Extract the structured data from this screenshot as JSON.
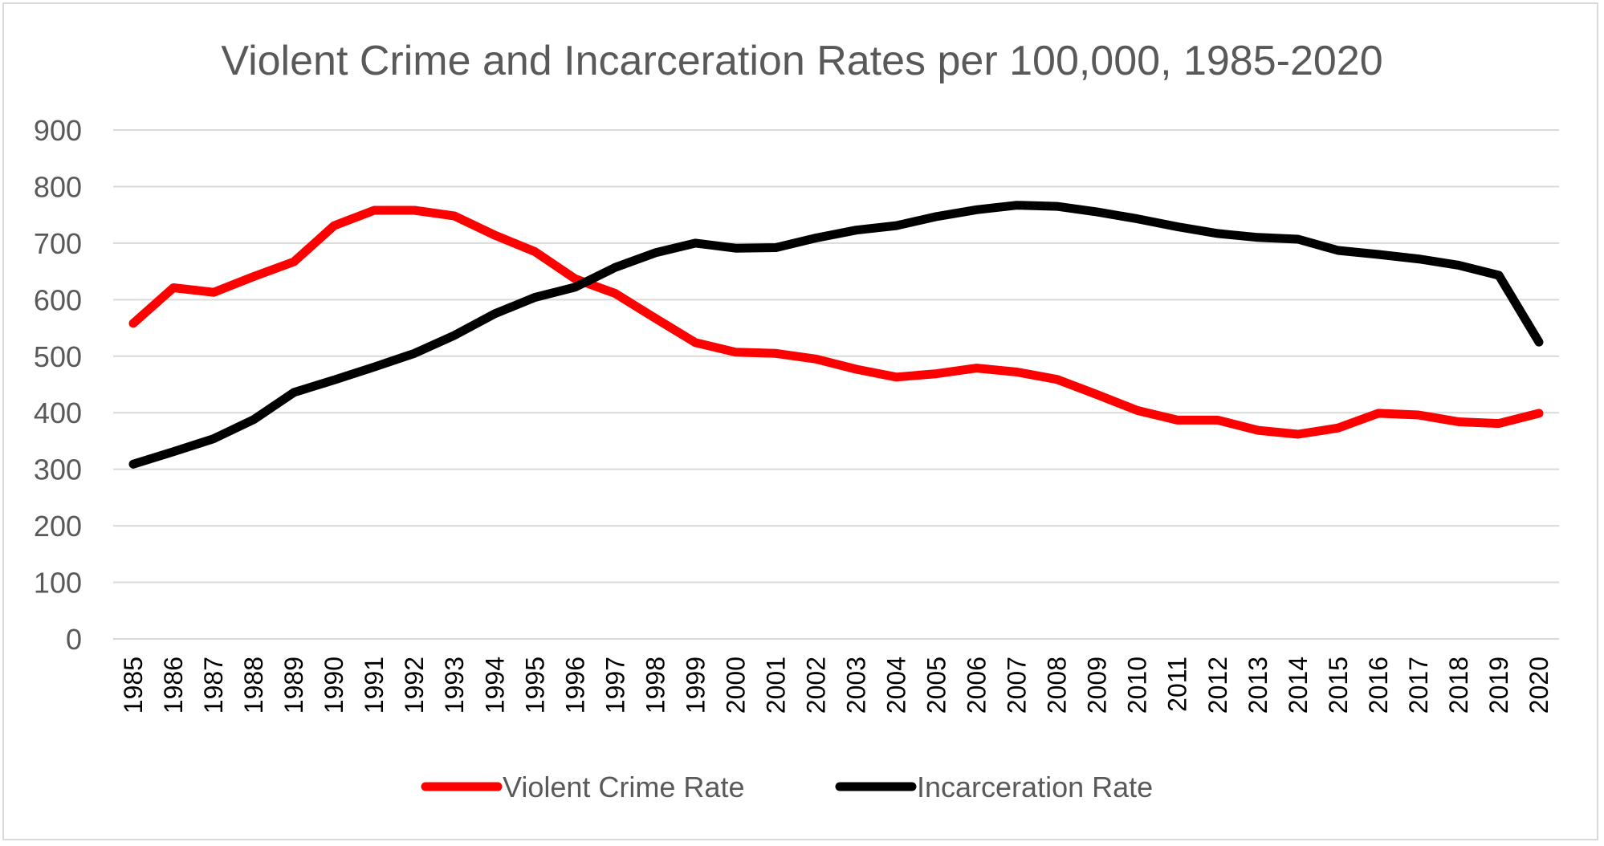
{
  "chart_data": {
    "type": "line",
    "title": "Violent Crime and Incarceration Rates per 100,000, 1985-2020",
    "xlabel": "",
    "ylabel": "",
    "ylim": [
      0,
      900
    ],
    "yticks": [
      0,
      100,
      200,
      300,
      400,
      500,
      600,
      700,
      800,
      900
    ],
    "grid": true,
    "legend_position": "bottom",
    "categories": [
      "1985",
      "1986",
      "1987",
      "1988",
      "1989",
      "1990",
      "1991",
      "1992",
      "1993",
      "1994",
      "1995",
      "1996",
      "1997",
      "1998",
      "1999",
      "2000",
      "2001",
      "2002",
      "2003",
      "2004",
      "2005",
      "2006",
      "2007",
      "2008",
      "2009",
      "2010",
      "2011",
      "2012",
      "2013",
      "2014",
      "2015",
      "2016",
      "2017",
      "2018",
      "2019",
      "2020"
    ],
    "series": [
      {
        "name": "Violent Crime Rate",
        "color": "#ff0000",
        "values": [
          558,
          621,
          613,
          641,
          667,
          731,
          758,
          758,
          748,
          714,
          685,
          637,
          611,
          567,
          524,
          507,
          505,
          495,
          477,
          463,
          469,
          479,
          472,
          459,
          432,
          404,
          387,
          387,
          369,
          362,
          373,
          399,
          396,
          384,
          381,
          399
        ]
      },
      {
        "name": "Incarceration Rate",
        "color": "#000000",
        "values": [
          309,
          331,
          354,
          388,
          436,
          458,
          481,
          505,
          537,
          575,
          604,
          622,
          657,
          683,
          700,
          691,
          692,
          709,
          723,
          731,
          747,
          759,
          767,
          765,
          755,
          743,
          729,
          717,
          710,
          707,
          687,
          680,
          672,
          661,
          643,
          525
        ]
      }
    ]
  }
}
